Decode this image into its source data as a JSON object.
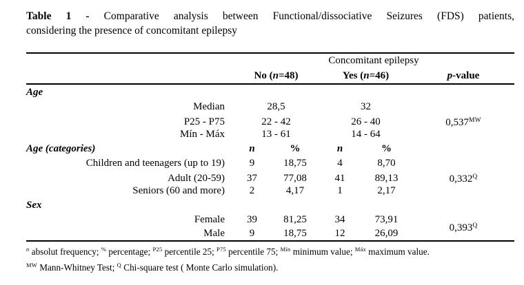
{
  "caption": {
    "label": "Table 1 -",
    "line1_rest": "Comparative analysis between Functional/dissociative Seizures (FDS) patients,",
    "line2": "considering the presence of concomitant epilepsy"
  },
  "header": {
    "group": "Concomitant epilepsy",
    "no": {
      "prefix": "No (",
      "n": "n",
      "suffix": "=48)"
    },
    "yes": {
      "prefix": "Yes (",
      "n": "n",
      "suffix": "=46)"
    },
    "p": {
      "italic": "p",
      "rest": "-value"
    }
  },
  "subheader": {
    "n1": "n",
    "pct1": "%",
    "n2": "n",
    "pct2": "%"
  },
  "sections": {
    "age": {
      "label": "Age",
      "rows": [
        {
          "label": "Median",
          "no": "28,5",
          "yes": "32",
          "p": "",
          "p_sup": ""
        },
        {
          "label": "P25 - P75",
          "no": "22 - 42",
          "yes": "26 - 40",
          "p": "0,537",
          "p_sup": "MW"
        },
        {
          "label": "Mín - Máx",
          "no": "13 - 61",
          "yes": "14 - 64",
          "p": "",
          "p_sup": ""
        }
      ]
    },
    "age_categories": {
      "label": "Age (categories)",
      "rows": [
        {
          "label": "Children and teenagers (up to 19)",
          "n1": "9",
          "pct1": "18,75",
          "n2": "4",
          "pct2": "8,70",
          "p": "",
          "p_sup": ""
        },
        {
          "label": "Adult (20-59)",
          "n1": "37",
          "pct1": "77,08",
          "n2": "41",
          "pct2": "89,13",
          "p": "0,332",
          "p_sup": "Q"
        },
        {
          "label": "Seniors (60 and more)",
          "n1": "2",
          "pct1": "4,17",
          "n2": "1",
          "pct2": "2,17",
          "p": "",
          "p_sup": ""
        }
      ]
    },
    "sex": {
      "label": "Sex",
      "rows": [
        {
          "label": "Female",
          "n1": "39",
          "pct1": "81,25",
          "n2": "34",
          "pct2": "73,91"
        },
        {
          "label": "Male",
          "n1": "9",
          "pct1": "18,75",
          "n2": "12",
          "pct2": "26,09"
        }
      ],
      "p": "0,393",
      "p_sup": "Q"
    }
  },
  "footnotes": {
    "line1": [
      {
        "sup": "n",
        "text": " absolut frequency; "
      },
      {
        "sup": "%",
        "text": " percentage; "
      },
      {
        "sup": "P25",
        "text": " percentile 25; "
      },
      {
        "sup": "P75",
        "text": " percentile 75; "
      },
      {
        "sup": "Mín",
        "text": " minimum value; "
      },
      {
        "sup": "Máx",
        "text": " maximum value."
      }
    ],
    "line2": [
      {
        "sup": "MW",
        "text": " Mann-Whitney Test; "
      },
      {
        "sup": "Q",
        "text": " Chi-square test ( Monte Carlo simulation)."
      }
    ]
  }
}
